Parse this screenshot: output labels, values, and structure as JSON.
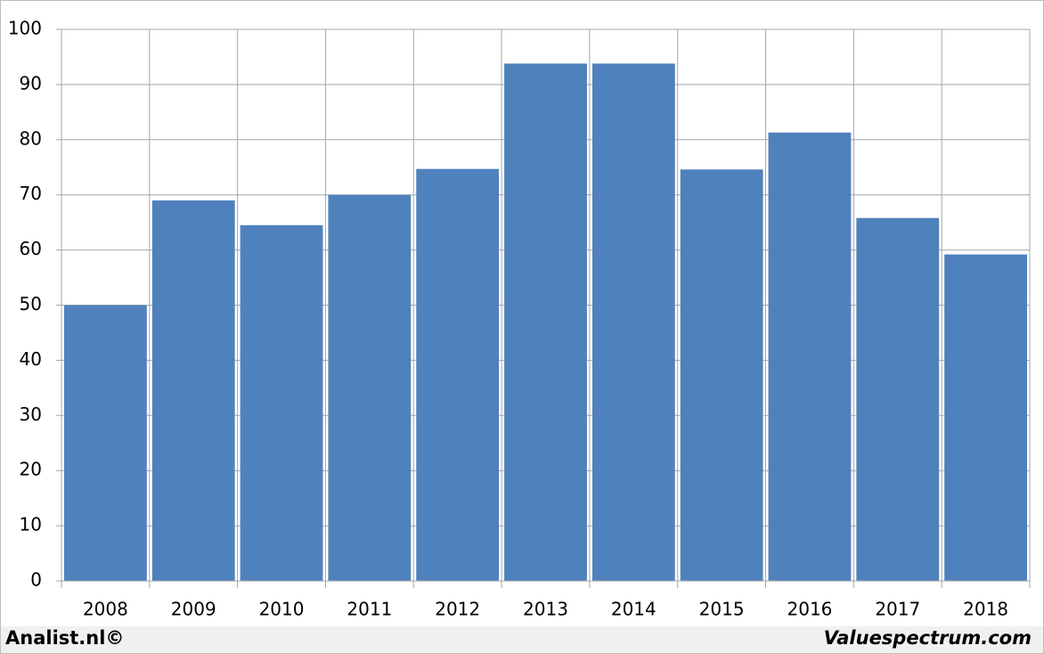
{
  "chart_data": {
    "type": "bar",
    "categories": [
      "2008",
      "2009",
      "2010",
      "2011",
      "2012",
      "2013",
      "2014",
      "2015",
      "2016",
      "2017",
      "2018"
    ],
    "values": [
      50,
      69,
      64.5,
      70,
      74.7,
      93.8,
      93.8,
      74.6,
      81.3,
      65.8,
      59.2
    ],
    "color": "#4f81bd",
    "ylim": [
      0,
      100
    ],
    "yticks": [
      0,
      10,
      20,
      30,
      40,
      50,
      60,
      70,
      80,
      90,
      100
    ],
    "grid": true
  },
  "footer": {
    "left": "Analist.nl©",
    "right": "Valuespectrum.com"
  }
}
